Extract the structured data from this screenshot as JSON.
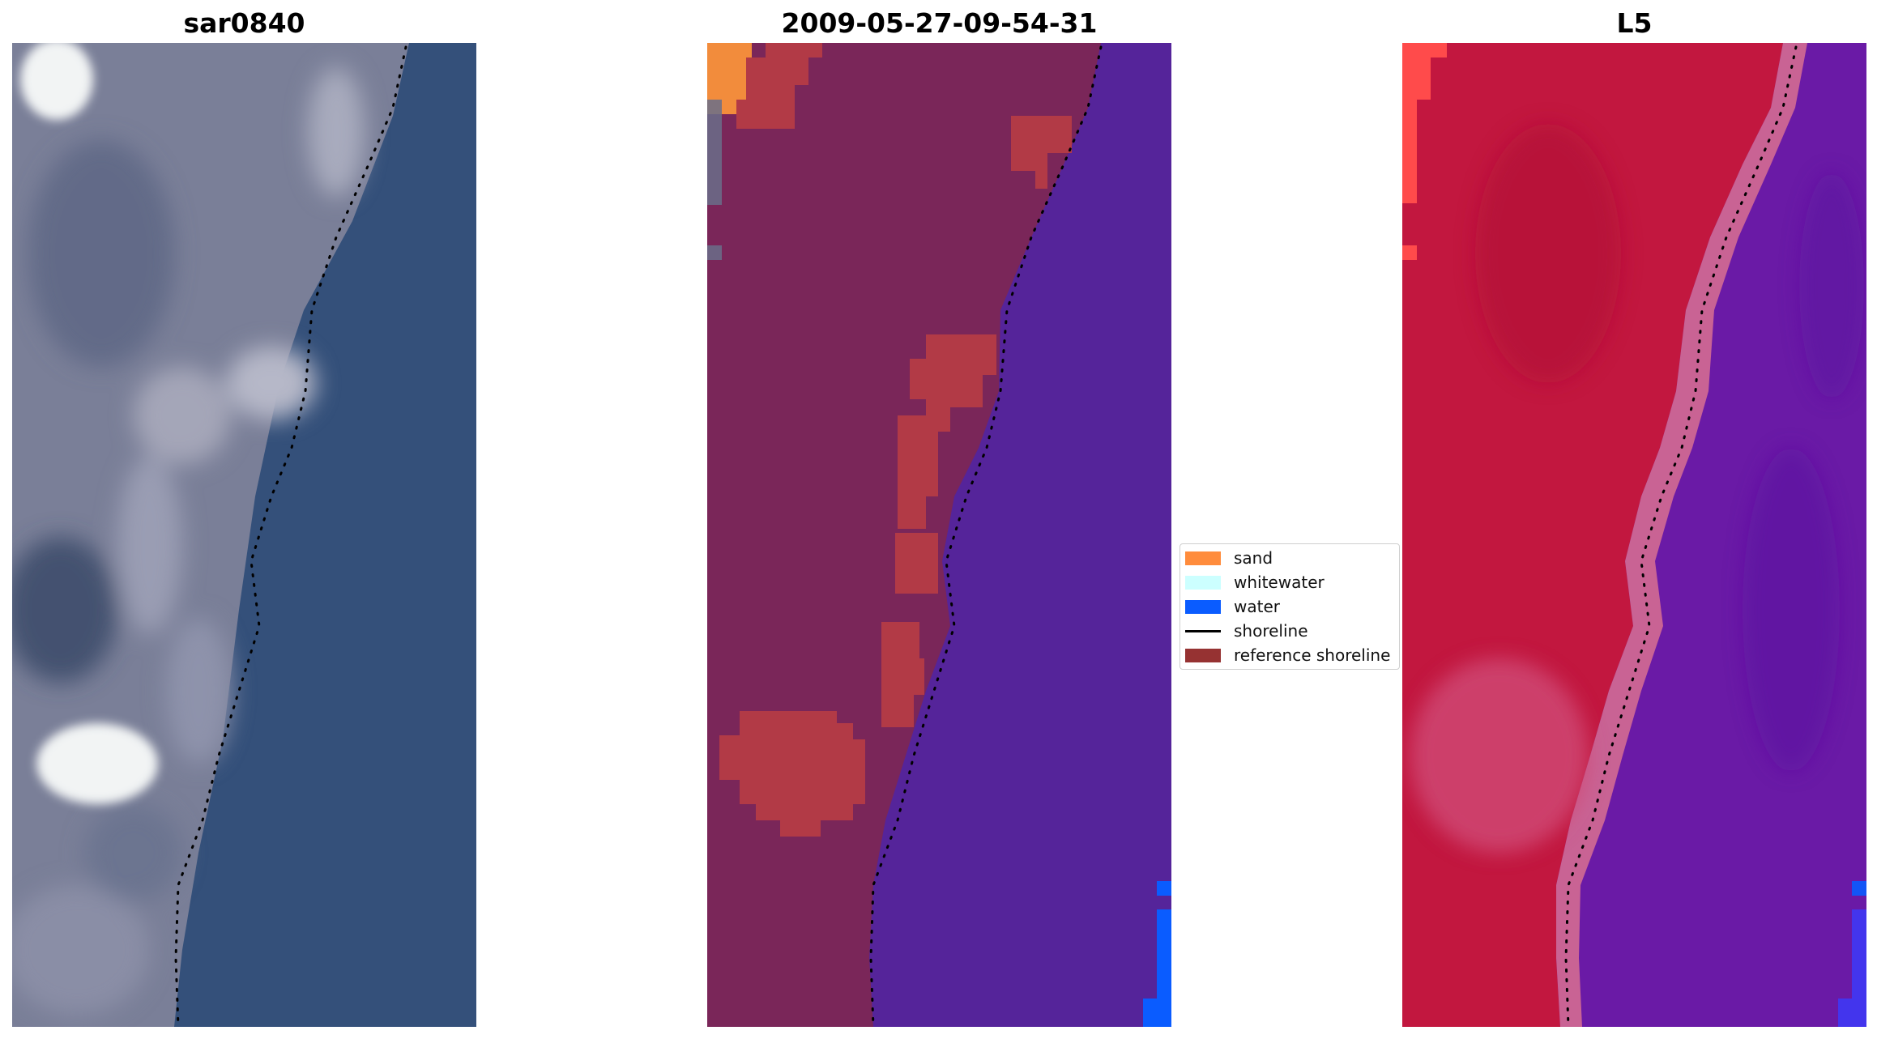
{
  "panels": [
    {
      "title": "sar0840",
      "kind": "rgb"
    },
    {
      "title": "2009-05-27-09-54-31",
      "kind": "classified"
    },
    {
      "title": "L5",
      "kind": "index"
    }
  ],
  "legend": {
    "placement": "center (between second and third panel)",
    "items": [
      {
        "label": "sand",
        "type": "patch",
        "color": "#ff8c3c"
      },
      {
        "label": "whitewater",
        "type": "patch",
        "color": "#ccffff"
      },
      {
        "label": "water",
        "type": "patch",
        "color": "#0a5cff"
      },
      {
        "label": "shoreline",
        "type": "line",
        "color": "#000000"
      },
      {
        "label": "reference shoreline",
        "type": "patch",
        "color": "#963232"
      }
    ]
  },
  "colors": {
    "rgb_land": "#7a7f98",
    "rgb_sea": "#34507a",
    "rgb_bright": "#f2f4f4",
    "class_land": "#7a2659",
    "class_water": "#55249a",
    "class_sand": "#f28c3c",
    "class_ref": "#b23a46",
    "class_water_blue": "#0a5cff",
    "index_land": "#c2173f",
    "index_water": "#6a1aa6",
    "index_transition": "#d46b92"
  }
}
